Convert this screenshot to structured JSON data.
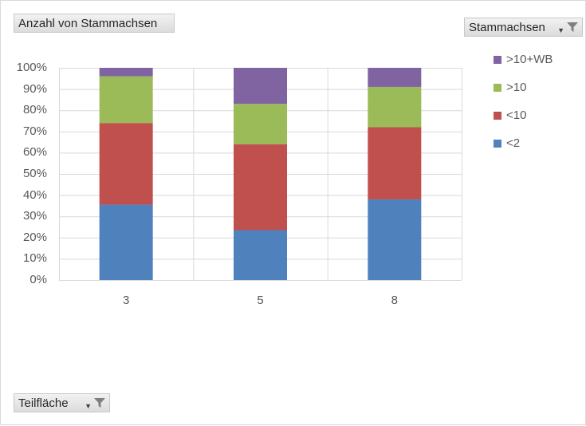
{
  "value_field_button": {
    "label": "Anzahl von Stammachsen"
  },
  "legend_field_button": {
    "label": "Stammachsen",
    "icons": [
      "dropdown-arrow-icon",
      "filter-icon"
    ]
  },
  "axis_field_button": {
    "label": "Teilfläche",
    "icons": [
      "dropdown-arrow-icon",
      "filter-icon"
    ]
  },
  "chart_data": {
    "type": "bar",
    "stacked": "percent",
    "categories": [
      "3",
      "5",
      "8"
    ],
    "series": [
      {
        "name": "<2",
        "color": "#4f81bd",
        "values": [
          0.355,
          0.235,
          0.38
        ]
      },
      {
        "name": "<10",
        "color": "#c0504d",
        "values": [
          0.385,
          0.405,
          0.34
        ]
      },
      {
        "name": ">10",
        "color": "#9bbb59",
        "values": [
          0.22,
          0.19,
          0.19
        ]
      },
      {
        "name": ">10+WB",
        "color": "#8064a2",
        "values": [
          0.04,
          0.17,
          0.09
        ]
      }
    ],
    "ylim": [
      0,
      1
    ],
    "yticks": [
      "0%",
      "10%",
      "20%",
      "30%",
      "40%",
      "50%",
      "60%",
      "70%",
      "80%",
      "90%",
      "100%"
    ],
    "grid": true,
    "legend_position": "right"
  }
}
